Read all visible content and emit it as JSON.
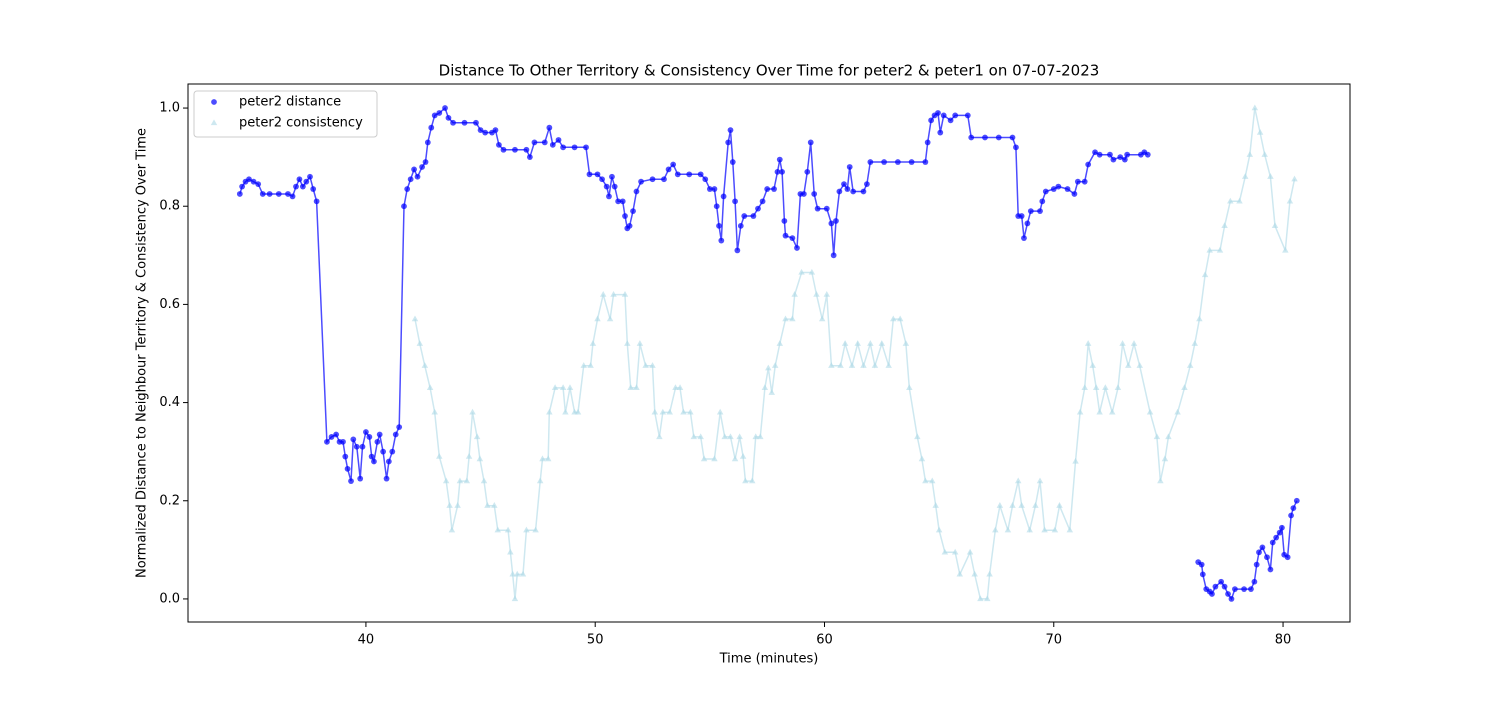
{
  "chart_data": {
    "type": "scatter",
    "title": "Distance To Other Territory & Consistency Over Time for peter2 & peter1 on 07-07-2023",
    "x_label": "Time (minutes)",
    "y_label": "Normalized Distance to Neighbour Territory & Consistency Over Time",
    "xlim": [
      32.24,
      82.92
    ],
    "ylim": [
      -0.047,
      1.049
    ],
    "xticks": [
      40,
      50,
      60,
      70,
      80
    ],
    "yticks": [
      {
        "value": 0,
        "label": "0.0"
      },
      0.2,
      0.4,
      0.6,
      0.8,
      {
        "value": 1,
        "label": "1.0"
      }
    ],
    "grid": false,
    "legend": "upper left",
    "series": [
      {
        "name": "peter2 distance",
        "color": "#0000ff",
        "marker": "circle",
        "x": [
          34.5,
          34.6,
          34.75,
          34.9,
          35.1,
          35.3,
          35.5,
          35.8,
          36.2,
          36.6,
          36.8,
          36.95,
          37.1,
          37.25,
          37.4,
          37.56,
          37.7,
          37.85,
          38.3,
          38.5,
          38.7,
          38.85,
          39.0,
          39.1,
          39.2,
          39.35,
          39.45,
          39.6,
          39.75,
          39.85,
          40.0,
          40.15,
          40.25,
          40.35,
          40.5,
          40.6,
          40.75,
          40.9,
          41.0,
          41.15,
          41.3,
          41.45,
          41.66,
          41.8,
          41.95,
          42.1,
          42.25,
          42.45,
          42.6,
          42.7,
          42.85,
          43.0,
          43.2,
          43.45,
          43.6,
          43.8,
          44.3,
          44.8,
          45.0,
          45.2,
          45.5,
          45.65,
          45.8,
          46.0,
          46.5,
          47.0,
          47.15,
          47.35,
          47.8,
          48.0,
          48.15,
          48.4,
          48.6,
          49.1,
          49.6,
          49.75,
          50.1,
          50.3,
          50.5,
          50.6,
          50.73,
          50.85,
          51.0,
          51.2,
          51.3,
          51.4,
          51.5,
          51.65,
          51.8,
          52.0,
          52.5,
          53.0,
          53.2,
          53.4,
          53.6,
          54.1,
          54.6,
          54.8,
          55.0,
          55.2,
          55.3,
          55.4,
          55.5,
          55.6,
          55.8,
          55.9,
          56.0,
          56.1,
          56.2,
          56.35,
          56.5,
          56.9,
          57.1,
          57.3,
          57.5,
          57.8,
          57.95,
          58.05,
          58.15,
          58.25,
          58.3,
          58.6,
          58.8,
          58.95,
          59.1,
          59.25,
          59.4,
          59.55,
          59.7,
          60.1,
          60.3,
          60.4,
          60.5,
          60.65,
          60.85,
          61.0,
          61.1,
          61.25,
          61.7,
          61.85,
          62.0,
          62.6,
          63.2,
          63.8,
          64.4,
          64.5,
          64.65,
          64.8,
          64.95,
          65.05,
          65.2,
          65.5,
          65.7,
          66.25,
          66.4,
          67.0,
          67.6,
          68.2,
          68.35,
          68.45,
          68.6,
          68.7,
          68.85,
          69.0,
          69.4,
          69.5,
          69.65,
          70.0,
          70.2,
          70.6,
          70.9,
          71.05,
          71.35,
          71.5,
          71.8,
          72.0,
          72.45,
          72.6,
          72.9,
          73.1,
          73.2,
          73.8,
          73.95,
          74.1,
          null,
          76.3,
          76.45,
          76.5,
          76.65,
          76.8,
          76.9,
          77.05,
          77.3,
          77.45,
          77.6,
          77.75,
          77.9,
          78.3,
          78.6,
          78.75,
          78.85,
          78.95,
          79.1,
          79.3,
          79.45,
          79.55,
          79.7,
          79.85,
          79.95,
          80.05,
          80.2,
          80.35,
          80.45,
          80.6
        ],
        "values": [
          0.825,
          0.84,
          0.85,
          0.855,
          0.85,
          0.845,
          0.825,
          0.825,
          0.825,
          0.825,
          0.82,
          0.84,
          0.855,
          0.84,
          0.85,
          0.86,
          0.835,
          0.81,
          0.32,
          0.33,
          0.335,
          0.32,
          0.32,
          0.29,
          0.265,
          0.24,
          0.325,
          0.31,
          0.245,
          0.31,
          0.34,
          0.33,
          0.29,
          0.28,
          0.32,
          0.335,
          0.3,
          0.245,
          0.28,
          0.3,
          0.335,
          0.35,
          0.8,
          0.835,
          0.855,
          0.875,
          0.86,
          0.88,
          0.89,
          0.93,
          0.96,
          0.985,
          0.99,
          1.0,
          0.98,
          0.97,
          0.97,
          0.97,
          0.955,
          0.95,
          0.95,
          0.955,
          0.925,
          0.915,
          0.915,
          0.915,
          0.9,
          0.93,
          0.93,
          0.96,
          0.925,
          0.935,
          0.92,
          0.92,
          0.92,
          0.865,
          0.865,
          0.855,
          0.84,
          0.82,
          0.86,
          0.84,
          0.81,
          0.81,
          0.78,
          0.755,
          0.76,
          0.79,
          0.83,
          0.85,
          0.855,
          0.855,
          0.875,
          0.885,
          0.865,
          0.865,
          0.865,
          0.855,
          0.835,
          0.835,
          0.8,
          0.76,
          0.73,
          0.82,
          0.93,
          0.955,
          0.89,
          0.81,
          0.71,
          0.76,
          0.78,
          0.78,
          0.795,
          0.81,
          0.835,
          0.835,
          0.87,
          0.895,
          0.87,
          0.77,
          0.74,
          0.735,
          0.715,
          0.825,
          0.825,
          0.87,
          0.93,
          0.825,
          0.795,
          0.795,
          0.765,
          0.7,
          0.77,
          0.83,
          0.845,
          0.835,
          0.88,
          0.83,
          0.83,
          0.845,
          0.89,
          0.89,
          0.89,
          0.89,
          0.89,
          0.93,
          0.975,
          0.985,
          0.99,
          0.95,
          0.985,
          0.975,
          0.985,
          0.985,
          0.94,
          0.94,
          0.94,
          0.94,
          0.92,
          0.78,
          0.78,
          0.735,
          0.765,
          0.79,
          0.79,
          0.81,
          0.83,
          0.835,
          0.84,
          0.835,
          0.825,
          0.85,
          0.85,
          0.885,
          0.91,
          0.905,
          0.905,
          0.895,
          0.9,
          0.895,
          0.905,
          0.905,
          0.91,
          0.905,
          null,
          0.075,
          0.07,
          0.05,
          0.02,
          0.015,
          0.01,
          0.025,
          0.035,
          0.025,
          0.01,
          0.0,
          0.02,
          0.02,
          0.02,
          0.035,
          0.07,
          0.095,
          0.105,
          0.085,
          0.06,
          0.115,
          0.125,
          0.135,
          0.145,
          0.09,
          0.085,
          0.17,
          0.185,
          0.2
        ]
      },
      {
        "name": "peter2 consistency",
        "color": "#add8e6",
        "marker": "triangle",
        "x": [
          42.14,
          42.35,
          42.57,
          42.8,
          43.0,
          43.2,
          43.5,
          43.65,
          43.75,
          44.0,
          44.1,
          44.4,
          44.5,
          44.65,
          44.85,
          44.97,
          45.15,
          45.3,
          45.6,
          45.75,
          46.2,
          46.3,
          46.4,
          46.5,
          46.6,
          46.85,
          47.0,
          47.4,
          47.6,
          47.7,
          47.95,
          48.0,
          48.25,
          48.6,
          48.7,
          48.9,
          49.1,
          49.25,
          49.5,
          49.8,
          49.9,
          50.1,
          50.35,
          50.65,
          50.8,
          51.3,
          51.4,
          51.55,
          51.8,
          51.95,
          52.2,
          52.5,
          52.6,
          52.8,
          52.95,
          53.25,
          53.5,
          53.7,
          53.85,
          54.15,
          54.3,
          54.6,
          54.75,
          55.2,
          55.45,
          55.65,
          55.9,
          56.1,
          56.3,
          56.45,
          56.55,
          56.85,
          57.0,
          57.2,
          57.4,
          57.55,
          57.7,
          57.85,
          58.05,
          58.3,
          58.6,
          58.7,
          59.0,
          59.45,
          59.65,
          59.9,
          60.1,
          60.3,
          60.7,
          60.9,
          61.2,
          61.45,
          61.7,
          62.0,
          62.2,
          62.5,
          62.8,
          63.0,
          63.3,
          63.55,
          63.7,
          64.05,
          64.25,
          64.4,
          64.7,
          64.85,
          65.0,
          65.25,
          65.7,
          65.9,
          66.35,
          66.55,
          66.8,
          67.1,
          67.2,
          67.45,
          67.65,
          68.0,
          68.2,
          68.45,
          68.6,
          68.95,
          69.2,
          69.4,
          69.6,
          70.05,
          70.25,
          70.7,
          70.95,
          71.15,
          71.35,
          71.5,
          71.7,
          71.85,
          72.0,
          72.25,
          72.55,
          72.8,
          73.0,
          73.25,
          73.5,
          73.75,
          74.2,
          74.5,
          74.65,
          74.85,
          75.0,
          75.4,
          75.7,
          75.95,
          76.15,
          76.35,
          76.6,
          76.8,
          77.25,
          77.45,
          77.7,
          78.1,
          78.35,
          78.55,
          78.77,
          79.0,
          79.2,
          79.45,
          79.65,
          80.1,
          80.3,
          80.5
        ],
        "values": [
          0.57,
          0.52,
          0.475,
          0.43,
          0.38,
          0.29,
          0.24,
          0.19,
          0.14,
          0.19,
          0.24,
          0.24,
          0.29,
          0.38,
          0.33,
          0.285,
          0.24,
          0.19,
          0.19,
          0.14,
          0.14,
          0.095,
          0.05,
          0.0,
          0.05,
          0.05,
          0.14,
          0.14,
          0.24,
          0.285,
          0.285,
          0.38,
          0.43,
          0.43,
          0.38,
          0.43,
          0.38,
          0.38,
          0.475,
          0.475,
          0.52,
          0.57,
          0.62,
          0.57,
          0.62,
          0.62,
          0.52,
          0.43,
          0.43,
          0.52,
          0.475,
          0.475,
          0.38,
          0.33,
          0.38,
          0.38,
          0.43,
          0.43,
          0.38,
          0.38,
          0.33,
          0.33,
          0.285,
          0.285,
          0.38,
          0.33,
          0.33,
          0.285,
          0.33,
          0.29,
          0.24,
          0.24,
          0.33,
          0.33,
          0.43,
          0.47,
          0.42,
          0.475,
          0.52,
          0.57,
          0.57,
          0.62,
          0.665,
          0.665,
          0.62,
          0.57,
          0.62,
          0.475,
          0.475,
          0.52,
          0.475,
          0.52,
          0.475,
          0.52,
          0.475,
          0.52,
          0.475,
          0.57,
          0.57,
          0.52,
          0.43,
          0.33,
          0.285,
          0.24,
          0.24,
          0.19,
          0.14,
          0.095,
          0.095,
          0.05,
          0.095,
          0.05,
          0.0,
          0.0,
          0.05,
          0.14,
          0.19,
          0.14,
          0.19,
          0.24,
          0.19,
          0.14,
          0.19,
          0.24,
          0.14,
          0.14,
          0.19,
          0.14,
          0.28,
          0.38,
          0.43,
          0.52,
          0.475,
          0.43,
          0.38,
          0.43,
          0.38,
          0.43,
          0.52,
          0.475,
          0.52,
          0.475,
          0.38,
          0.33,
          0.24,
          0.285,
          0.33,
          0.38,
          0.43,
          0.475,
          0.52,
          0.57,
          0.66,
          0.71,
          0.71,
          0.76,
          0.81,
          0.81,
          0.86,
          0.905,
          1.0,
          0.95,
          0.905,
          0.86,
          0.76,
          0.71,
          0.81,
          0.855
        ]
      }
    ]
  }
}
